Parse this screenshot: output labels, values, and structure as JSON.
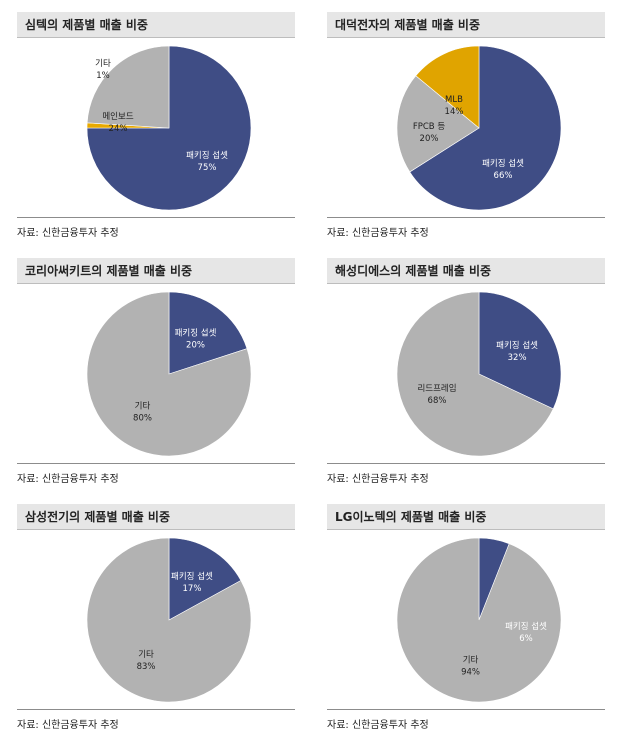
{
  "chart_data": [
    {
      "type": "pie",
      "title": "심텍의 제품별 매출 비중",
      "source": "자료: 신한금융투자 추정",
      "slices": [
        {
          "name": "패키징 섭셋",
          "value": 75,
          "label": "75%",
          "color": "#3f4d85",
          "text_color": "#ffffff"
        },
        {
          "name": "기타",
          "value": 1,
          "label": "1%",
          "color": "#e8a900",
          "text_color": "#222222"
        },
        {
          "name": "메인보드",
          "value": 24,
          "label": "24%",
          "color": "#b2b2b2",
          "text_color": "#222222"
        }
      ]
    },
    {
      "type": "pie",
      "title": "대덕전자의 제품별 매출 비중",
      "source": "자료: 신한금융투자 추정",
      "slices": [
        {
          "name": "패키징 섭셋",
          "value": 66,
          "label": "66%",
          "color": "#3f4d85",
          "text_color": "#ffffff"
        },
        {
          "name": "FPCB 등",
          "value": 20,
          "label": "20%",
          "color": "#b2b2b2",
          "text_color": "#222222"
        },
        {
          "name": "MLB",
          "value": 14,
          "label": "14%",
          "color": "#e0a400",
          "text_color": "#222222"
        }
      ]
    },
    {
      "type": "pie",
      "title": "코리아써키트의 제품별 매출 비중",
      "source": "자료: 신한금융투자 추정",
      "slices": [
        {
          "name": "패키징 섭셋",
          "value": 20,
          "label": "20%",
          "color": "#3f4d85",
          "text_color": "#ffffff"
        },
        {
          "name": "기타",
          "value": 80,
          "label": "80%",
          "color": "#b2b2b2",
          "text_color": "#222222"
        }
      ]
    },
    {
      "type": "pie",
      "title": "해성디에스의 제품별 매출 비중",
      "source": "자료: 신한금융투자 추정",
      "slices": [
        {
          "name": "패키징 섭셋",
          "value": 32,
          "label": "32%",
          "color": "#3f4d85",
          "text_color": "#ffffff"
        },
        {
          "name": "리드프레임",
          "value": 68,
          "label": "68%",
          "color": "#b2b2b2",
          "text_color": "#222222"
        }
      ]
    },
    {
      "type": "pie",
      "title": "삼성전기의 제품별 매출 비중",
      "source": "자료: 신한금융투자 추정",
      "slices": [
        {
          "name": "패키징 섭셋",
          "value": 17,
          "label": "17%",
          "color": "#3f4d85",
          "text_color": "#ffffff"
        },
        {
          "name": "기타",
          "value": 83,
          "label": "83%",
          "color": "#b2b2b2",
          "text_color": "#222222"
        }
      ]
    },
    {
      "type": "pie",
      "title": "LG이노텍의 제품별 매출 비중",
      "source": "자료: 신한금융투자 추정",
      "slices": [
        {
          "name": "패키징 섭셋",
          "value": 6,
          "label": "6%",
          "color": "#3f4d85",
          "text_color": "#ffffff"
        },
        {
          "name": "기타",
          "value": 94,
          "label": "94%",
          "color": "#b2b2b2",
          "text_color": "#222222"
        }
      ]
    }
  ]
}
